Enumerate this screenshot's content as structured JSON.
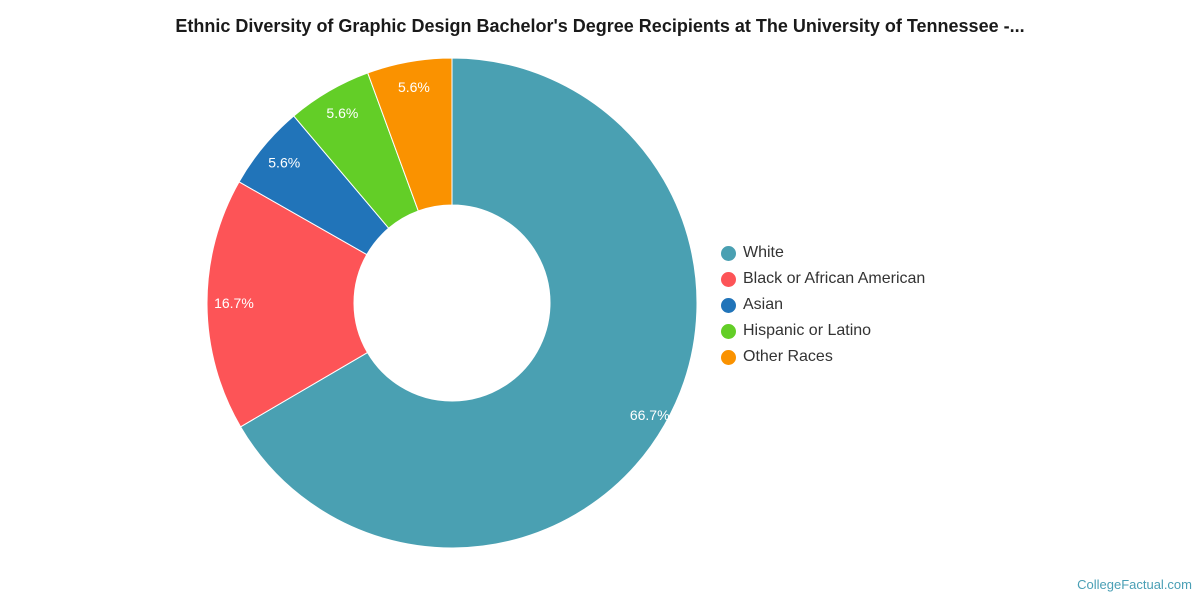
{
  "chart_data": {
    "type": "pie",
    "title": "Ethnic Diversity of Graphic Design Bachelor's Degree Recipients at The University of Tennessee -...",
    "categories": [
      "White",
      "Black or African American",
      "Asian",
      "Hispanic or Latino",
      "Other Races"
    ],
    "values": [
      66.7,
      16.7,
      5.6,
      5.6,
      5.6
    ],
    "labels": [
      "66.7%",
      "16.7%",
      "5.6%",
      "5.6%",
      "5.6%"
    ],
    "colors": [
      "#4aa0b2",
      "#fd5457",
      "#2174b9",
      "#63ce27",
      "#fa9200"
    ],
    "donut": true,
    "legend_position": "right"
  },
  "credit": "CollegeFactual.com"
}
